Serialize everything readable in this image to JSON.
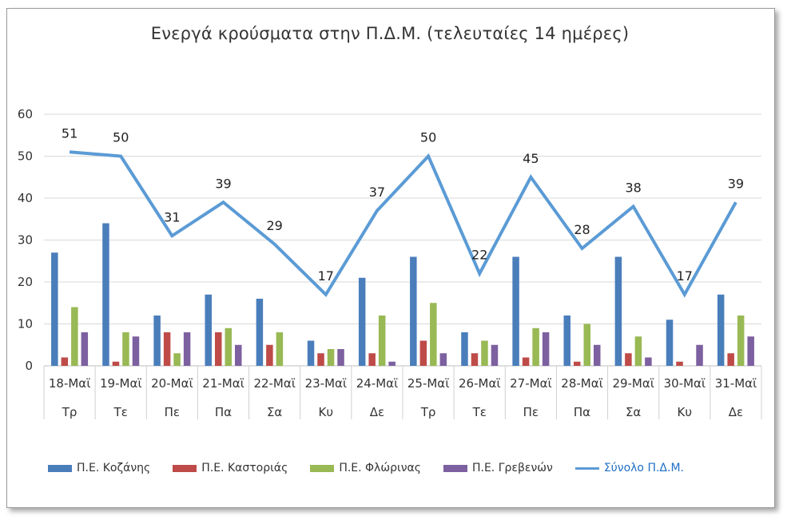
{
  "chart_data": {
    "type": "bar",
    "title": "Ενεργά κρούσματα στην Π.Δ.Μ. (τελευταίες 14 ημέρες)",
    "categories": [
      "18-Μαϊ",
      "19-Μαϊ",
      "20-Μαϊ",
      "21-Μαϊ",
      "22-Μαϊ",
      "23-Μαϊ",
      "24-Μαϊ",
      "25-Μαϊ",
      "26-Μαϊ",
      "27-Μαϊ",
      "28-Μαϊ",
      "29-Μαϊ",
      "30-Μαϊ",
      "31-Μαϊ"
    ],
    "days": [
      "Τρ",
      "Τε",
      "Πε",
      "Πα",
      "Σα",
      "Κυ",
      "Δε",
      "Τρ",
      "Τε",
      "Πε",
      "Πα",
      "Σα",
      "Κυ",
      "Δε"
    ],
    "ylim": [
      0,
      60
    ],
    "yticks": [
      0,
      10,
      20,
      30,
      40,
      50,
      60
    ],
    "grid": true,
    "legend_position": "bottom",
    "series": [
      {
        "name": "Π.Ε. Κοζάνης",
        "color": "#4a7ebb",
        "values": [
          27,
          34,
          12,
          17,
          16,
          6,
          21,
          26,
          8,
          26,
          12,
          26,
          11,
          17
        ]
      },
      {
        "name": "Π.Ε. Καστοριάς",
        "color": "#be4b48",
        "values": [
          2,
          1,
          8,
          8,
          5,
          3,
          3,
          6,
          3,
          2,
          1,
          3,
          1,
          3
        ]
      },
      {
        "name": "Π.Ε. Φλώρινας",
        "color": "#98b954",
        "values": [
          14,
          8,
          3,
          9,
          8,
          4,
          12,
          15,
          6,
          9,
          10,
          7,
          0,
          12
        ]
      },
      {
        "name": "Π.Ε. Γρεβενών",
        "color": "#7d60a0",
        "values": [
          8,
          7,
          8,
          5,
          0,
          4,
          1,
          3,
          5,
          8,
          5,
          2,
          5,
          7
        ]
      }
    ],
    "total": {
      "name": "Σύνολο Π.Δ.Μ.",
      "color": "#5b9bd5",
      "label_color": "#1f6fc5",
      "values": [
        51,
        50,
        31,
        39,
        29,
        17,
        37,
        50,
        22,
        45,
        28,
        38,
        17,
        39
      ]
    }
  }
}
